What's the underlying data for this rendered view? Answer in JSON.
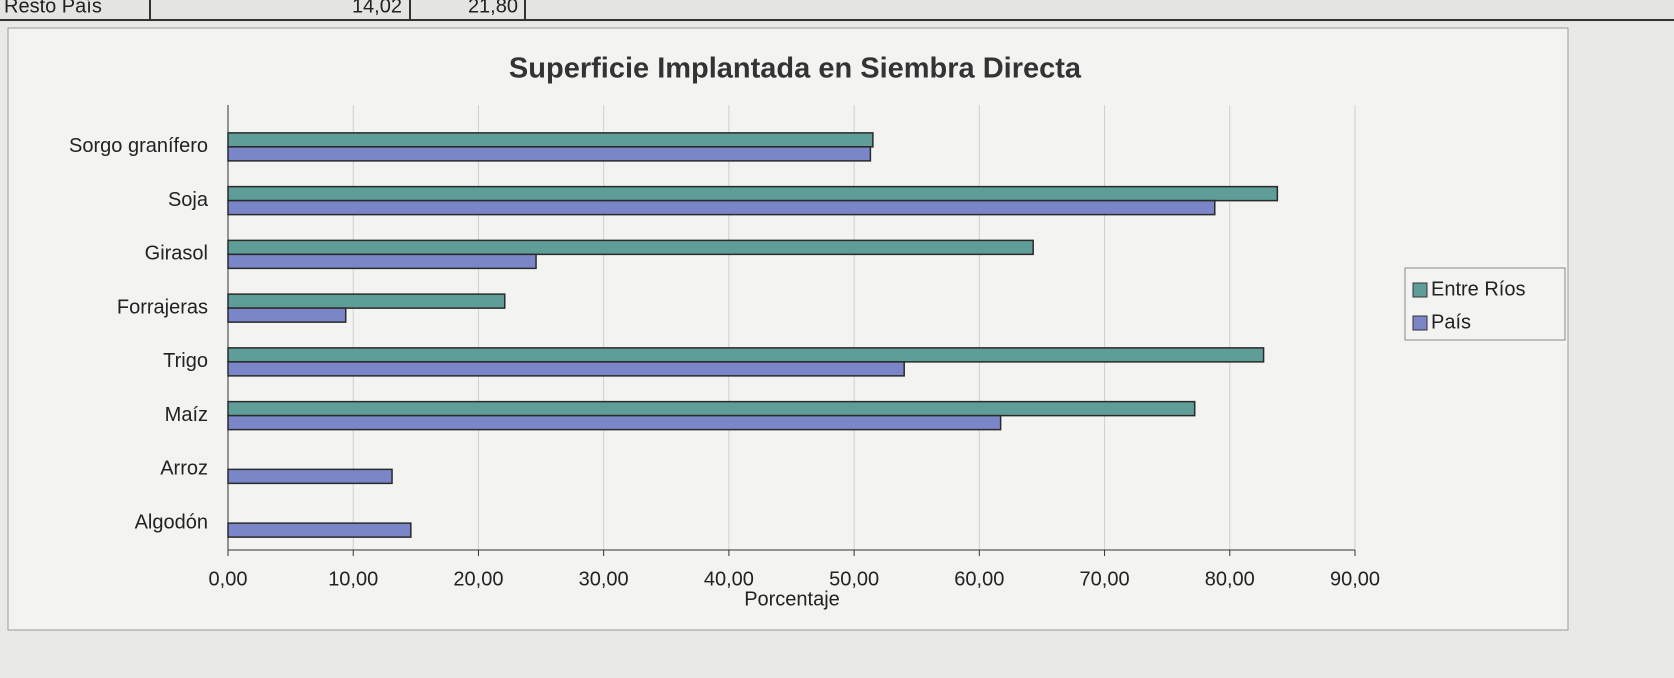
{
  "header_row": {
    "label": "Resto País",
    "cells": [
      "14,02",
      "21,80"
    ]
  },
  "chart_data": {
    "type": "barh",
    "title": "Superficie Implantada en Siembra Directa",
    "xlabel": "Porcentaje",
    "categories": [
      "Sorgo granífero",
      "Soja",
      "Girasol",
      "Forrajeras",
      "Trigo",
      "Maíz",
      "Arroz",
      "Algodón"
    ],
    "series": [
      {
        "name": "Entre Ríos",
        "color": "#5f9e98",
        "values": [
          51.5,
          83.8,
          64.3,
          22.1,
          82.7,
          77.2,
          null,
          null
        ]
      },
      {
        "name": "País",
        "color": "#7b86c9",
        "values": [
          51.3,
          78.8,
          24.6,
          9.4,
          54.0,
          61.7,
          13.1,
          14.6
        ]
      }
    ],
    "xlim": [
      0,
      90
    ],
    "xticks": [
      {
        "value": 0,
        "label": "0,00"
      },
      {
        "value": 10,
        "label": "10,00"
      },
      {
        "value": 20,
        "label": "20,00"
      },
      {
        "value": 30,
        "label": "30,00"
      },
      {
        "value": 40,
        "label": "40,00"
      },
      {
        "value": 50,
        "label": "50,00"
      },
      {
        "value": 60,
        "label": "60,00"
      },
      {
        "value": 70,
        "label": "70,00"
      },
      {
        "value": 80,
        "label": "80,00"
      },
      {
        "value": 90,
        "label": "90,00"
      }
    ],
    "grid": true,
    "legend": "right"
  }
}
